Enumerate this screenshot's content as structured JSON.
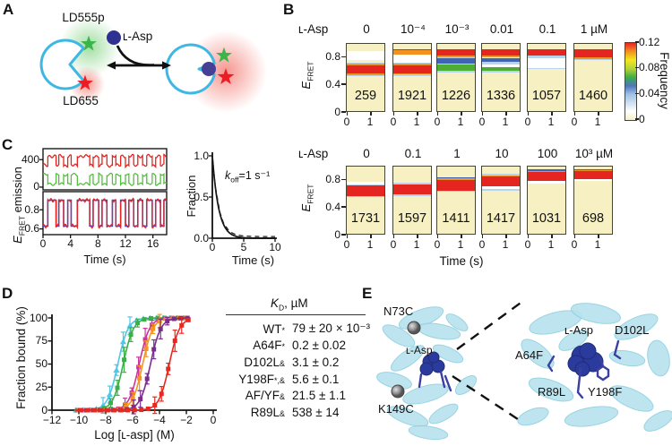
{
  "panels": {
    "a": "A",
    "b": "B",
    "c": "C",
    "d": "D",
    "e": "E"
  },
  "panel_a": {
    "donor_label": "LD555p",
    "acceptor_label": "LD655",
    "ligand_label": "ʟ-Asp",
    "colors": {
      "protein_outline": "#3db7e4",
      "donor_star": "#3ab54a",
      "acceptor_star": "#ed1c24",
      "ligand_dot": "#2e3192"
    }
  },
  "kd_table": {
    "header": {
      "k": "K",
      "sub": "D",
      "unit": ", µM"
    },
    "rows": [
      {
        "name": "WT",
        "sup": "*",
        "value": "79 ± 20 × 10⁻³"
      },
      {
        "name": "A64F",
        "sup": "*",
        "value": "0.2 ± 0.02"
      },
      {
        "name": "D102L",
        "sup": "&",
        "value": "3.1 ± 0.2"
      },
      {
        "name": "Y198F",
        "sup": "*,&",
        "value": "5.6 ± 0.1"
      },
      {
        "name": "AF/YF",
        "sup": "&",
        "value": "21.5 ± 1.1"
      },
      {
        "name": "R89L",
        "sup": "&",
        "value": "538 ± 14"
      }
    ]
  },
  "panel_e": {
    "full_view": {
      "top_site": "N73C",
      "ligand": "ʟ-Asp",
      "bottom_site": "K149C"
    },
    "zoom_view": {
      "ligand": "ʟ-Asp",
      "res_a": "A64F",
      "res_b": "D102L",
      "res_c": "R89L",
      "res_d": "Y198F"
    }
  },
  "chart_data": [
    {
      "id": "fret-histograms-low-range",
      "type": "heatmap",
      "row_label": "ʟ-Asp",
      "concentrations": [
        "0",
        "10⁻⁴",
        "10⁻³",
        "0.01",
        "0.1",
        "1 µM"
      ],
      "n_molecules": [
        "259",
        "1921",
        "1226",
        "1336",
        "1057",
        "1460"
      ],
      "x_ticks": [
        "0",
        "1"
      ],
      "x_label": "Time (s)",
      "y_label": {
        "e": "E",
        "sub": "FRET"
      },
      "y_ticks": [
        "0.8",
        "0.4",
        "0"
      ],
      "y_range": [
        0,
        1
      ],
      "frequency_scale": {
        "label": "Frequency",
        "ticks": [
          "0.12",
          "0.08",
          "0.04",
          "0"
        ],
        "gradient_top_to_bottom": [
          "#e52520",
          "#f59120",
          "#f2e71d",
          "#b5d336",
          "#3fae49",
          "#4e74bb",
          "#9fc2e4",
          "#cfe0f0",
          "#ffffff",
          "#f6f0c2"
        ]
      },
      "palette": {
        "red": "#e52520",
        "orange": "#f59120",
        "green": "#4cae32",
        "blue": "#3f63b5",
        "lightblue": "#b9d3ea",
        "white": "#ffffff",
        "background": "#f6f0c2"
      },
      "bands_efret": [
        [
          [
            "white",
            0.77,
            0.89
          ],
          [
            "lightblue",
            0.71,
            0.73
          ],
          [
            "orange",
            0.69,
            0.71
          ],
          [
            "red",
            0.57,
            0.69
          ],
          [
            "orange",
            0.55,
            0.57
          ],
          [
            "lightblue",
            0.53,
            0.55
          ]
        ],
        [
          [
            "blue",
            0.905,
            0.925
          ],
          [
            "orange",
            0.85,
            0.905
          ],
          [
            "white",
            0.73,
            0.85
          ],
          [
            "lightblue",
            0.71,
            0.73
          ],
          [
            "orange",
            0.69,
            0.71
          ],
          [
            "red",
            0.575,
            0.69
          ],
          [
            "orange",
            0.555,
            0.575
          ],
          [
            "lightblue",
            0.535,
            0.555
          ]
        ],
        [
          [
            "red",
            0.825,
            0.925
          ],
          [
            "orange",
            0.805,
            0.825
          ],
          [
            "lightblue",
            0.79,
            0.805
          ],
          [
            "blue",
            0.72,
            0.79
          ],
          [
            "lightblue",
            0.695,
            0.72
          ],
          [
            "green",
            0.615,
            0.695
          ],
          [
            "lightblue",
            0.59,
            0.615
          ]
        ],
        [
          [
            "red",
            0.825,
            0.925
          ],
          [
            "orange",
            0.805,
            0.825
          ],
          [
            "blue",
            0.74,
            0.79
          ],
          [
            "lightblue",
            0.7,
            0.74
          ],
          [
            "white",
            0.665,
            0.7
          ],
          [
            "green",
            0.605,
            0.665
          ],
          [
            "lightblue",
            0.58,
            0.605
          ]
        ],
        [
          [
            "red",
            0.825,
            0.925
          ],
          [
            "lightblue",
            0.795,
            0.825
          ],
          [
            "white",
            0.655,
            0.795
          ],
          [
            "lightblue",
            0.63,
            0.655
          ]
        ],
        [
          [
            "red",
            0.805,
            0.925
          ],
          [
            "orange",
            0.785,
            0.805
          ],
          [
            "lightblue",
            0.765,
            0.785
          ]
        ]
      ]
    },
    {
      "id": "fret-histograms-high-range",
      "type": "heatmap",
      "row_label": "ʟ-Asp",
      "concentrations": [
        "0",
        "0.1",
        "1",
        "10",
        "100",
        "10³ µM"
      ],
      "n_molecules": [
        "1731",
        "1597",
        "1411",
        "1417",
        "1031",
        "698"
      ],
      "x_ticks": [
        "0",
        "1"
      ],
      "x_label": "Time (s)",
      "y_label": {
        "e": "E",
        "sub": "FRET"
      },
      "y_ticks": [
        "0.8",
        "0.4",
        "0"
      ],
      "y_range": [
        0,
        1
      ],
      "bands_efret": [
        [
          [
            "white",
            0.745,
            0.775
          ],
          [
            "lightblue",
            0.725,
            0.745
          ],
          [
            "red",
            0.575,
            0.725
          ],
          [
            "lightblue",
            0.555,
            0.575
          ]
        ],
        [
          [
            "lightblue",
            0.745,
            0.765
          ],
          [
            "red",
            0.595,
            0.745
          ],
          [
            "lightblue",
            0.575,
            0.595
          ]
        ],
        [
          [
            "blue",
            0.825,
            0.84
          ],
          [
            "orange",
            0.8,
            0.825
          ],
          [
            "red",
            0.65,
            0.8
          ],
          [
            "lightblue",
            0.63,
            0.65
          ]
        ],
        [
          [
            "lightblue",
            0.87,
            0.89
          ],
          [
            "orange",
            0.855,
            0.87
          ],
          [
            "red",
            0.715,
            0.855
          ],
          [
            "white",
            0.675,
            0.715
          ],
          [
            "lightblue",
            0.655,
            0.675
          ]
        ],
        [
          [
            "blue",
            0.935,
            0.955
          ],
          [
            "orange",
            0.92,
            0.935
          ],
          [
            "red",
            0.795,
            0.92
          ],
          [
            "white",
            0.755,
            0.795
          ]
        ],
        [
          [
            "blue",
            0.945,
            0.965
          ],
          [
            "orange",
            0.93,
            0.945
          ],
          [
            "red",
            0.82,
            0.93
          ],
          [
            "white",
            0.795,
            0.82
          ]
        ]
      ]
    },
    {
      "id": "single-molecule-trace",
      "type": "line",
      "x_label": "Time (s)",
      "x_ticks": [
        "0",
        "4",
        "8",
        "12",
        "16"
      ],
      "x_range": [
        0,
        18
      ],
      "y_label": {
        "e": "E",
        "sub": "FRET",
        "rest": " emission"
      },
      "emission_ticks": [
        "400",
        "0"
      ],
      "fret_ticks": [
        "0.8",
        "0.6"
      ],
      "levels": {
        "fret": [
          0.63,
          0.9
        ],
        "acceptor": [
          315,
          452
        ],
        "donor": [
          182,
          46
        ]
      },
      "transitions": [
        [
          0,
          0
        ],
        [
          0.7,
          1
        ],
        [
          1.9,
          0
        ],
        [
          2.3,
          1
        ],
        [
          3.0,
          0
        ],
        [
          3.6,
          1
        ],
        [
          4.1,
          0
        ],
        [
          5.0,
          1
        ],
        [
          6.8,
          0
        ],
        [
          7.3,
          1
        ],
        [
          8.1,
          0
        ],
        [
          8.6,
          1
        ],
        [
          9.3,
          0
        ],
        [
          10.1,
          1
        ],
        [
          10.6,
          0
        ],
        [
          11.3,
          1
        ],
        [
          12.0,
          0
        ],
        [
          12.5,
          1
        ],
        [
          13.2,
          0
        ],
        [
          13.8,
          1
        ],
        [
          14.5,
          0
        ],
        [
          15.1,
          1
        ],
        [
          15.9,
          0
        ],
        [
          16.4,
          1
        ],
        [
          17.1,
          0
        ],
        [
          17.6,
          1
        ]
      ],
      "colors": {
        "acceptor": "#e8231e",
        "donor": "#55bf3f",
        "fret": "#e8231e",
        "idealized": "#3c4bc8"
      }
    },
    {
      "id": "unbinding-kinetics",
      "type": "line",
      "x_label": "Time (s)",
      "y_label": "Fraction",
      "x_ticks": [
        "0",
        "5",
        "10"
      ],
      "y_ticks": [
        "1.0",
        "0.5",
        "0.0"
      ],
      "koff": {
        "k": "k",
        "sub": "off",
        "rest": "=1 s⁻¹"
      },
      "koff_per_s": 1,
      "decay_points": [
        [
          0,
          1
        ],
        [
          0.25,
          0.78
        ],
        [
          0.5,
          0.6
        ],
        [
          0.75,
          0.49
        ],
        [
          1,
          0.38
        ],
        [
          1.25,
          0.28
        ],
        [
          1.5,
          0.23
        ],
        [
          1.75,
          0.17
        ],
        [
          2,
          0.14
        ],
        [
          2.5,
          0.085
        ],
        [
          3,
          0.05
        ],
        [
          3.5,
          0.032
        ],
        [
          4,
          0.02
        ],
        [
          4.5,
          0.012
        ],
        [
          5,
          0.008
        ],
        [
          6,
          0.003
        ],
        [
          7,
          0.001
        ],
        [
          8,
          0
        ],
        [
          10,
          0
        ]
      ]
    },
    {
      "id": "equilibrium-titration",
      "type": "scatter",
      "x_label": "Log [ʟ-asp] (M)",
      "y_label": "Fraction bound (%)",
      "x_ticks": [
        "−12",
        "−10",
        "−8",
        "−6",
        "−4",
        "−2",
        "0"
      ],
      "y_ticks": [
        "100",
        "75",
        "50",
        "25",
        "0"
      ],
      "x_range": [
        -12,
        0
      ],
      "y_range": [
        0,
        100
      ],
      "hill_slope": 1.15,
      "series": [
        {
          "name": "WT",
          "color": "#4ec7e8",
          "log_kd_m": -7.1,
          "marker": "triangle"
        },
        {
          "name": "A64F",
          "color": "#3cb048",
          "log_kd_m": -6.7,
          "marker": "square"
        },
        {
          "name": "D102L",
          "color": "#c8389b",
          "log_kd_m": -5.51,
          "marker": "square"
        },
        {
          "name": "Y198F",
          "color": "#f7941d",
          "log_kd_m": -5.25,
          "marker": "square"
        },
        {
          "name": "AF/YF",
          "color": "#7b2d8e",
          "log_kd_m": -4.67,
          "marker": "square"
        },
        {
          "name": "R89L",
          "color": "#e8281e",
          "log_kd_m": -3.27,
          "marker": "square"
        }
      ]
    }
  ]
}
